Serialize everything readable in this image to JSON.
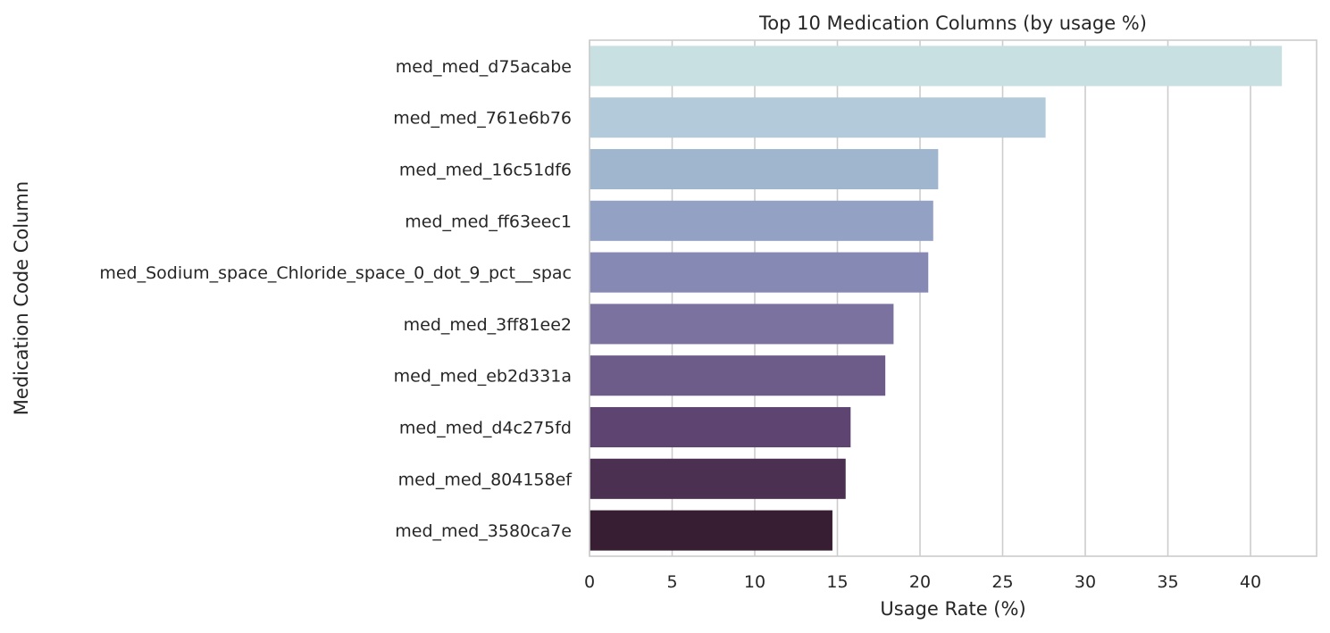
{
  "chart_data": {
    "type": "bar",
    "orientation": "horizontal",
    "title": "Top 10 Medication Columns (by usage %)",
    "xlabel": "Usage Rate (%)",
    "ylabel": "Medication Code Column",
    "xlim": [
      0,
      44
    ],
    "xticks": [
      0,
      5,
      10,
      15,
      20,
      25,
      30,
      35,
      40
    ],
    "grid": true,
    "legend": "none",
    "categories": [
      "med_med_d75acabe",
      "med_med_761e6b76",
      "med_med_16c51df6",
      "med_med_ff63eec1",
      "med_Sodium_space_Chloride_space_0_dot_9_pct__spac",
      "med_med_3ff81ee2",
      "med_med_eb2d331a",
      "med_med_d4c275fd",
      "med_med_804158ef",
      "med_med_3580ca7e"
    ],
    "values": [
      41.9,
      27.6,
      21.1,
      20.8,
      20.5,
      18.4,
      17.9,
      15.8,
      15.5,
      14.7
    ],
    "colors": [
      "#c9e0e3",
      "#b2cad9",
      "#a0b6ce",
      "#93a1c4",
      "#8689b3",
      "#7c72a0",
      "#6d5b8a",
      "#5e4571",
      "#4c3052",
      "#381e33"
    ]
  }
}
